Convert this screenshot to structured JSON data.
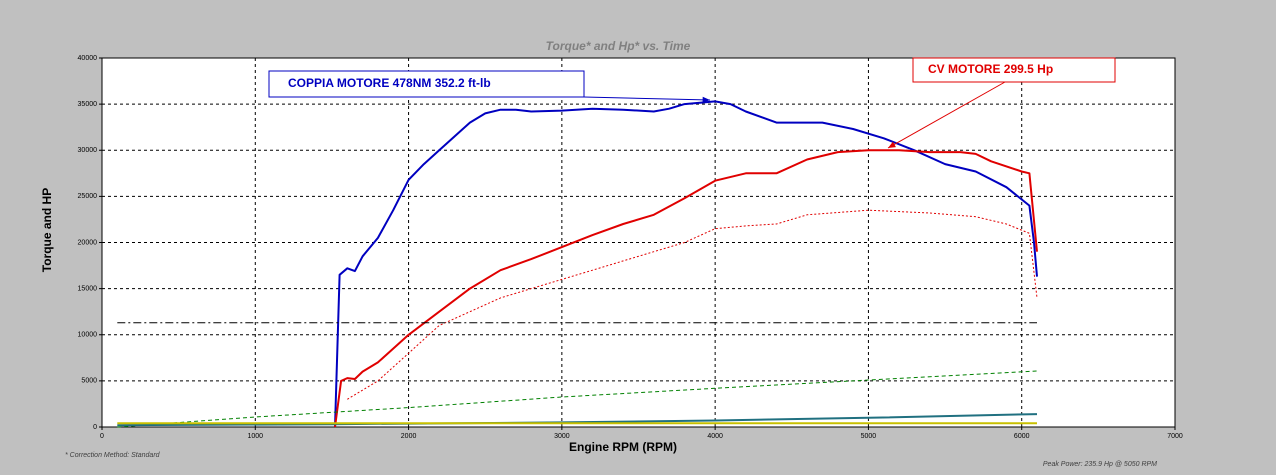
{
  "chart_data": {
    "type": "line",
    "title": "Torque* and Hp* vs. Time",
    "x_label": "Engine RPM (RPM)",
    "y_label": "Torque and HP",
    "xlim": [
      0,
      7000
    ],
    "xticks": [
      0,
      1000,
      2000,
      3000,
      4000,
      5000,
      6000,
      7000
    ],
    "ylim": [
      0,
      40000
    ],
    "yticks": [
      0,
      5000,
      10000,
      15000,
      20000,
      25000,
      30000,
      35000,
      40000
    ],
    "grid": true,
    "series": [
      {
        "color": "#0000c0",
        "line_style": "solid",
        "width": 2,
        "x": [
          1520,
          1550,
          1600,
          1650,
          1700,
          1800,
          1900,
          2000,
          2100,
          2200,
          2300,
          2400,
          2500,
          2600,
          2700,
          2800,
          3000,
          3200,
          3400,
          3600,
          3700,
          3800,
          4000,
          4100,
          4200,
          4400,
          4700,
          4900,
          5100,
          5300,
          5500,
          5700,
          5900,
          6050,
          6080,
          6100
        ],
        "values": [
          0,
          16500,
          17200,
          16900,
          18500,
          20500,
          23500,
          26800,
          28500,
          30000,
          31500,
          33000,
          34000,
          34400,
          34400,
          34200,
          34300,
          34500,
          34400,
          34200,
          34500,
          35000,
          35300,
          35000,
          34200,
          33000,
          33000,
          32300,
          31300,
          30000,
          28500,
          27700,
          26000,
          24000,
          20000,
          16300
        ]
      },
      {
        "color": "#e00000",
        "line_style": "solid",
        "width": 2,
        "x": [
          1520,
          1560,
          1600,
          1650,
          1700,
          1800,
          1900,
          2000,
          2200,
          2400,
          2600,
          2800,
          3000,
          3200,
          3400,
          3600,
          3800,
          4000,
          4200,
          4400,
          4600,
          4800,
          5000,
          5200,
          5400,
          5600,
          5700,
          5800,
          6000,
          6050,
          6100
        ],
        "values": [
          0,
          5000,
          5300,
          5200,
          6000,
          7000,
          8500,
          10000,
          12500,
          15000,
          17000,
          18200,
          19500,
          20800,
          22000,
          23000,
          24800,
          26700,
          27500,
          27500,
          29000,
          29800,
          30000,
          30000,
          29800,
          29800,
          29600,
          28800,
          27700,
          27500,
          19000
        ]
      },
      {
        "color": "#e00000",
        "line_style": "dotted",
        "width": 1,
        "x": [
          1600,
          1800,
          2000,
          2200,
          2400,
          2600,
          2800,
          3000,
          3200,
          3400,
          3600,
          3800,
          4000,
          4200,
          4400,
          4600,
          5000,
          5400,
          5700,
          5900,
          6050,
          6100
        ],
        "values": [
          3000,
          5000,
          8000,
          11000,
          12500,
          14000,
          15000,
          16000,
          17000,
          18000,
          19000,
          20000,
          21500,
          21800,
          22000,
          23000,
          23500,
          23200,
          22800,
          22000,
          21000,
          14000
        ]
      },
      {
        "color": "#008000",
        "line_style": "dashed",
        "width": 1,
        "x": [
          100,
          1000,
          2000,
          3000,
          4000,
          5000,
          6100
        ],
        "values": [
          0,
          1080,
          2100,
          3250,
          4200,
          5100,
          6070
        ]
      },
      {
        "color": "#207080",
        "line_style": "solid",
        "width": 2,
        "x": [
          100,
          1500,
          3000,
          4000,
          5000,
          6100
        ],
        "values": [
          200,
          300,
          500,
          700,
          1000,
          1400
        ]
      },
      {
        "color": "#c8c000",
        "line_style": "solid",
        "width": 2,
        "x": [
          100,
          6100
        ],
        "values": [
          400,
          400
        ]
      },
      {
        "color": "#000000",
        "line_style": "dashdot",
        "width": 1,
        "x": [
          100,
          6100
        ],
        "values": [
          11300,
          11300
        ]
      }
    ],
    "annotations": [
      {
        "text": "COPPIA MOTORE 478NM 352.2 ft-lb",
        "color": "#0000c0"
      },
      {
        "text": "CV MOTORE 299.5 Hp",
        "color": "#e00000"
      }
    ],
    "footnote": "* Correction Method: Standard",
    "peak_note": "Peak Power: 235.9 Hp @ 5050 RPM"
  }
}
